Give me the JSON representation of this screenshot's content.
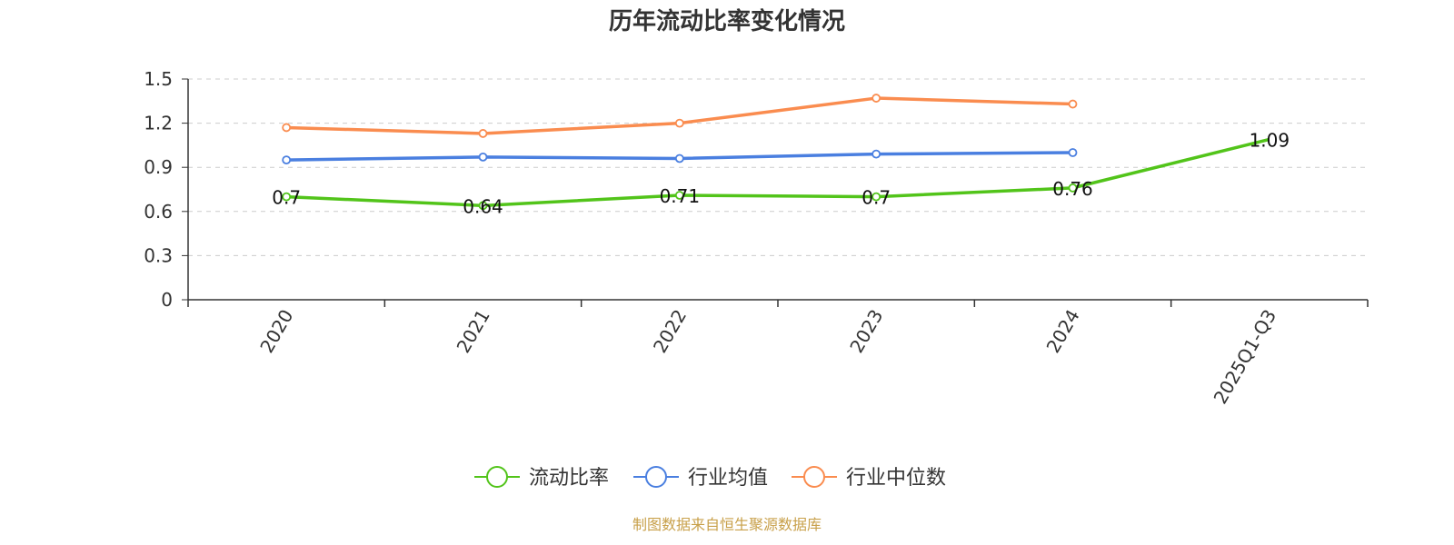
{
  "chart_data": {
    "type": "line",
    "title": "历年流动比率变化情况",
    "categories": [
      "2020",
      "2021",
      "2022",
      "2023",
      "2024",
      "2025Q1-Q3"
    ],
    "ylim": [
      0,
      1.5
    ],
    "yticks": [
      "0",
      "0.3",
      "0.6",
      "0.9",
      "1.2",
      "1.5"
    ],
    "grid": true,
    "legend_position": "bottom",
    "series": [
      {
        "name": "流动比率",
        "color": "#52c41a",
        "values": [
          0.7,
          0.64,
          0.71,
          0.7,
          0.76,
          1.09
        ],
        "labels": [
          "0.7",
          "0.64",
          "0.71",
          "0.7",
          "0.76",
          "1.09"
        ]
      },
      {
        "name": "行业均值",
        "color": "#4a7fe0",
        "values": [
          0.95,
          0.97,
          0.96,
          0.99,
          1.0,
          null
        ]
      },
      {
        "name": "行业中位数",
        "color": "#fa8c4f",
        "values": [
          1.17,
          1.13,
          1.2,
          1.37,
          1.33,
          null
        ]
      }
    ]
  },
  "source": "制图数据来自恒生聚源数据库"
}
